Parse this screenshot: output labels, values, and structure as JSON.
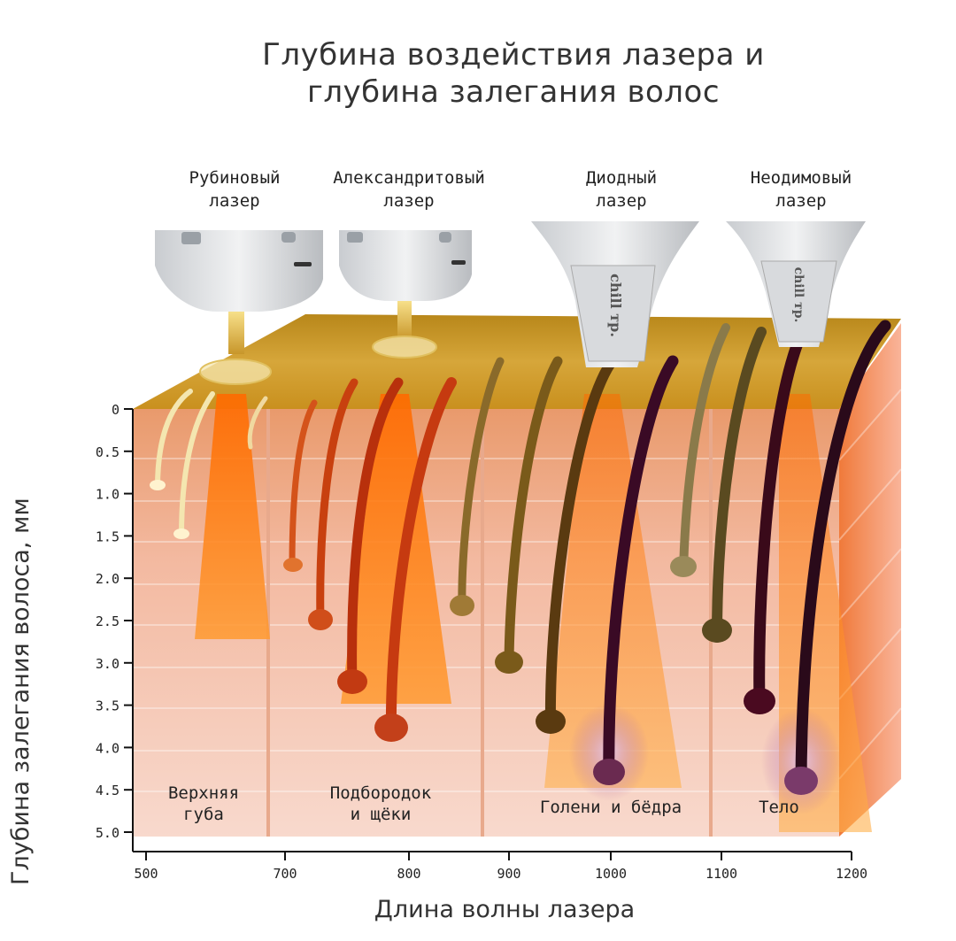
{
  "title": {
    "line1": "Глубина воздействия лазера и",
    "line2": "глубина залегания волос"
  },
  "lasers": [
    {
      "line1": "Рубиновый",
      "line2": "лазер"
    },
    {
      "line1": "Александритовый",
      "line2": "лазер"
    },
    {
      "line1": "Диодный",
      "line2": "лазер"
    },
    {
      "line1": "Неодимовый",
      "line2": "лазер"
    }
  ],
  "handpiece_brand": "chill тр.",
  "zones": [
    {
      "line1": "Верхняя",
      "line2": "губа"
    },
    {
      "line1": "Подбородок",
      "line2": "и щёки"
    },
    {
      "line1": "Голени и бёдра",
      "line2": ""
    },
    {
      "line1": "Тело",
      "line2": ""
    }
  ],
  "y_axis": {
    "label": "Глубина залегания волоса, мм",
    "ticks": [
      "0",
      "0.5",
      "1.0",
      "1.5",
      "2.0",
      "2.5",
      "3.0",
      "3.5",
      "4.0",
      "4.5",
      "5.0"
    ]
  },
  "x_axis": {
    "label": "Длина волны лазера",
    "ticks": [
      "500",
      "700",
      "800",
      "900",
      "1000",
      "1100",
      "1200"
    ]
  },
  "colors": {
    "skin_top": "#c9961f",
    "tissue": "#f2b9a8",
    "beam": "#ff7a1a",
    "hair_light": "#f4e6b0",
    "hair_red": "#c63a10",
    "hair_brown": "#7a5a1a",
    "hair_dark": "#3a0a25"
  }
}
